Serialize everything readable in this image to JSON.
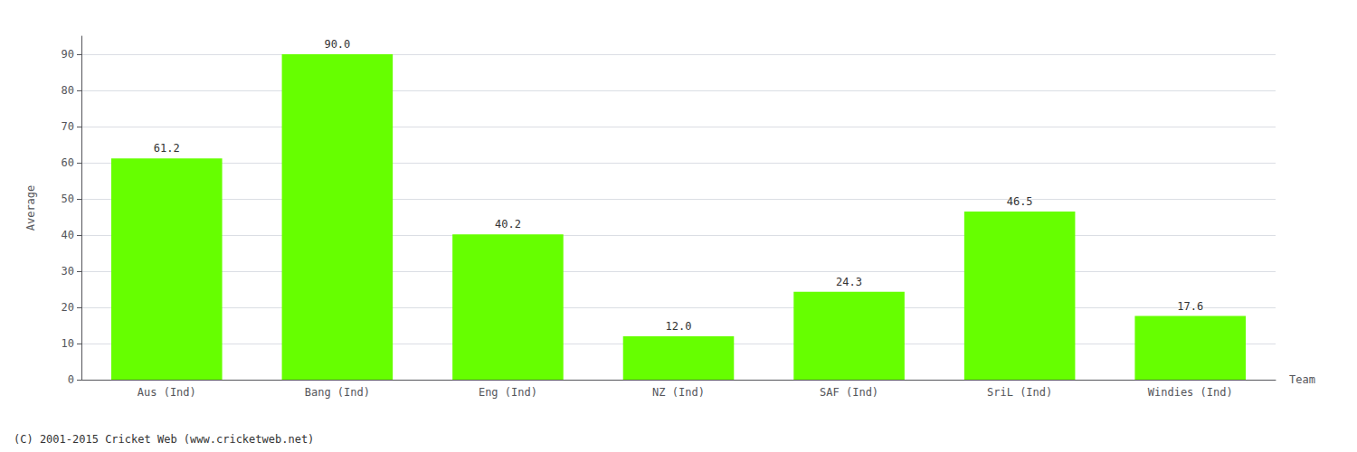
{
  "chart_data": {
    "type": "bar",
    "categories": [
      "Aus (Ind)",
      "Bang (Ind)",
      "Eng (Ind)",
      "NZ (Ind)",
      "SAF (Ind)",
      "SriL (Ind)",
      "Windies (Ind)"
    ],
    "values": [
      61.2,
      90.0,
      40.2,
      12.0,
      24.3,
      46.5,
      17.6
    ],
    "value_labels": [
      "61.2",
      "90.0",
      "40.2",
      "12.0",
      "24.3",
      "46.5",
      "17.6"
    ],
    "color": "#66ff00",
    "xlabel": "Team",
    "ylabel": "Average",
    "ylim": [
      0,
      95
    ],
    "yticks": [
      0,
      10,
      20,
      30,
      40,
      50,
      60,
      70,
      80,
      90
    ],
    "grid": true,
    "data_labels": true,
    "annotations": [
      "(C) 2001-2015 Cricket Web (www.cricketweb.net)"
    ]
  }
}
